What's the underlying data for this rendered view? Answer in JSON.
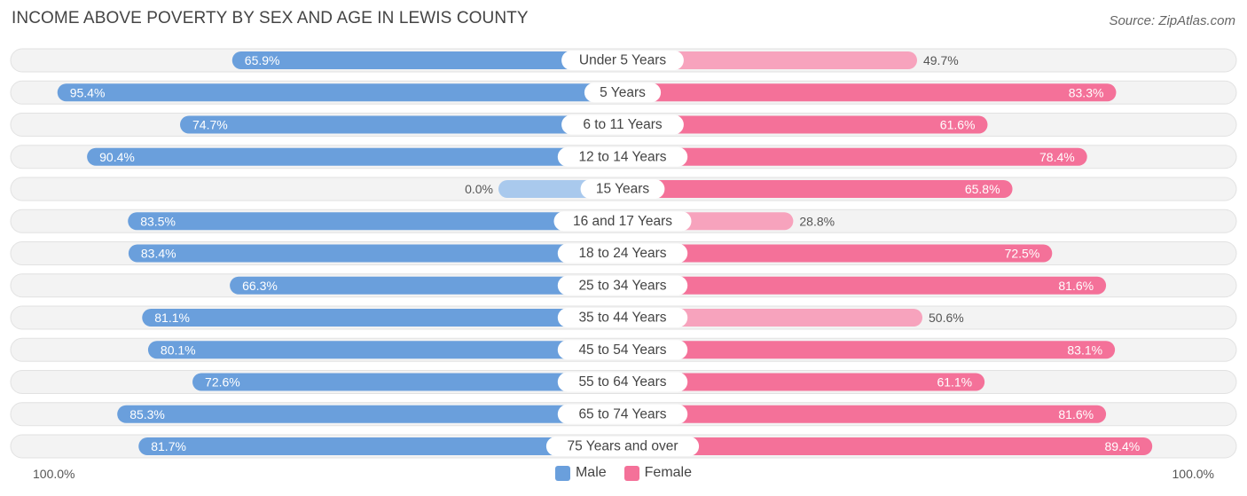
{
  "title": "INCOME ABOVE POVERTY BY SEX AND AGE IN LEWIS COUNTY",
  "source": "Source: ZipAtlas.com",
  "axis": {
    "left_label": "100.0%",
    "right_label": "100.0%"
  },
  "legend": {
    "male": "Male",
    "female": "Female"
  },
  "colors": {
    "male": "#6a9fdc",
    "male_light": "#a9c9ed",
    "female": "#f47199",
    "female_light": "#f7a3bd",
    "track": "#eeeeee"
  },
  "chart_data": {
    "type": "bar",
    "orientation": "diverging-horizontal",
    "title": "INCOME ABOVE POVERTY BY SEX AND AGE IN LEWIS COUNTY",
    "xlim": [
      0,
      100
    ],
    "categories": [
      "Under 5 Years",
      "5 Years",
      "6 to 11 Years",
      "12 to 14 Years",
      "15 Years",
      "16 and 17 Years",
      "18 to 24 Years",
      "25 to 34 Years",
      "35 to 44 Years",
      "45 to 54 Years",
      "55 to 64 Years",
      "65 to 74 Years",
      "75 Years and over"
    ],
    "series": [
      {
        "name": "Male",
        "values": [
          65.9,
          95.4,
          74.7,
          90.4,
          0.0,
          83.5,
          83.4,
          66.3,
          81.1,
          80.1,
          72.6,
          85.3,
          81.7
        ],
        "labels": [
          "65.9%",
          "95.4%",
          "74.7%",
          "90.4%",
          "0.0%",
          "83.5%",
          "83.4%",
          "66.3%",
          "81.1%",
          "80.1%",
          "72.6%",
          "85.3%",
          "81.7%"
        ]
      },
      {
        "name": "Female",
        "values": [
          49.7,
          83.3,
          61.6,
          78.4,
          65.8,
          28.8,
          72.5,
          81.6,
          50.6,
          83.1,
          61.1,
          81.6,
          89.4
        ],
        "labels": [
          "49.7%",
          "83.3%",
          "61.6%",
          "78.4%",
          "65.8%",
          "28.8%",
          "72.5%",
          "81.6%",
          "50.6%",
          "83.1%",
          "61.1%",
          "81.6%",
          "89.4%"
        ]
      }
    ]
  }
}
